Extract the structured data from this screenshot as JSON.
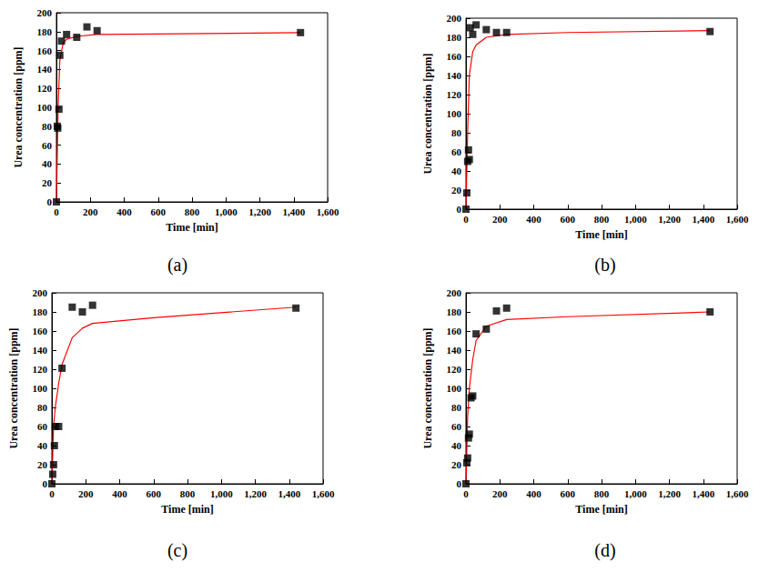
{
  "chart_data": [
    {
      "type": "scatter",
      "title": "(a)",
      "x_label": "Time [min]",
      "y_label": "Urea concentration [ppm]",
      "xlim": [
        0,
        1600
      ],
      "xticks": [
        0,
        200,
        400,
        600,
        800,
        1000,
        1200,
        1400,
        1600
      ],
      "ylim": [
        0,
        200
      ],
      "yticks": [
        0,
        20,
        40,
        60,
        80,
        100,
        120,
        140,
        160,
        180,
        200
      ],
      "grid": false,
      "series": [
        {
          "type": "scatter",
          "color": "#000000",
          "marker": "square",
          "x": [
            0,
            5,
            8,
            15,
            20,
            30,
            60,
            120,
            180,
            240,
            1440
          ],
          "values": [
            0,
            80,
            78,
            98,
            155,
            170,
            177,
            174,
            185,
            181,
            179
          ]
        },
        {
          "type": "line",
          "color": "#ff0000",
          "line_style": "solid",
          "x": [
            0,
            10,
            20,
            40,
            60,
            120,
            240,
            600,
            1440
          ],
          "values": [
            0,
            100,
            150,
            168,
            172,
            175,
            177,
            177.5,
            179
          ]
        }
      ]
    },
    {
      "type": "scatter",
      "title": "(b)",
      "x_label": "Time [min]",
      "y_label": "Urea concentration [ppm]",
      "xlim": [
        0,
        1600
      ],
      "xticks": [
        0,
        200,
        400,
        600,
        800,
        1000,
        1200,
        1400,
        1600
      ],
      "ylim": [
        0,
        200
      ],
      "yticks": [
        0,
        20,
        40,
        60,
        80,
        100,
        120,
        140,
        160,
        180,
        200
      ],
      "grid": false,
      "series": [
        {
          "type": "scatter",
          "color": "#000000",
          "marker": "square",
          "x": [
            0,
            5,
            10,
            15,
            20,
            25,
            40,
            60,
            120,
            180,
            240,
            1440
          ],
          "values": [
            0,
            17,
            50,
            62,
            52,
            190,
            183,
            193,
            188,
            185,
            185,
            186
          ]
        },
        {
          "type": "line",
          "color": "#ff0000",
          "line_style": "solid",
          "x": [
            0,
            10,
            20,
            40,
            60,
            120,
            240,
            600,
            1440
          ],
          "values": [
            0,
            80,
            140,
            165,
            172,
            180,
            183,
            185,
            187
          ]
        }
      ]
    },
    {
      "type": "scatter",
      "title": "(c)",
      "x_label": "Time [min]",
      "y_label": "Urea concentration [ppm]",
      "xlim": [
        0,
        1600
      ],
      "xticks": [
        0,
        200,
        400,
        600,
        800,
        1000,
        1200,
        1400,
        1600
      ],
      "ylim": [
        0,
        200
      ],
      "yticks": [
        0,
        20,
        40,
        60,
        80,
        100,
        120,
        140,
        160,
        180,
        200
      ],
      "grid": false,
      "series": [
        {
          "type": "scatter",
          "color": "#000000",
          "marker": "square",
          "x": [
            0,
            5,
            10,
            15,
            20,
            40,
            60,
            120,
            180,
            240,
            1440
          ],
          "values": [
            0,
            10,
            20,
            40,
            60,
            60,
            121,
            185,
            180,
            187,
            184
          ]
        },
        {
          "type": "line",
          "color": "#ff0000",
          "line_style": "solid",
          "x": [
            0,
            10,
            20,
            40,
            60,
            120,
            180,
            240,
            600,
            1440
          ],
          "values": [
            0,
            60,
            80,
            105,
            125,
            153,
            163,
            168,
            174,
            185
          ]
        }
      ]
    },
    {
      "type": "scatter",
      "title": "(d)",
      "x_label": "Time [min]",
      "y_label": "Urea concentration [ppm]",
      "xlim": [
        0,
        1600
      ],
      "xticks": [
        0,
        200,
        400,
        600,
        800,
        1000,
        1200,
        1400,
        1600
      ],
      "ylim": [
        0,
        200
      ],
      "yticks": [
        0,
        20,
        40,
        60,
        80,
        100,
        120,
        140,
        160,
        180,
        200
      ],
      "grid": false,
      "series": [
        {
          "type": "scatter",
          "color": "#000000",
          "marker": "square",
          "x": [
            0,
            5,
            10,
            15,
            20,
            30,
            40,
            60,
            120,
            180,
            240,
            1440
          ],
          "values": [
            0,
            22,
            27,
            48,
            52,
            90,
            92,
            157,
            162,
            181,
            184,
            180
          ]
        },
        {
          "type": "line",
          "color": "#ff0000",
          "line_style": "solid",
          "x": [
            0,
            10,
            20,
            40,
            60,
            120,
            240,
            600,
            1440
          ],
          "values": [
            0,
            70,
            100,
            130,
            150,
            165,
            172,
            175,
            180
          ]
        }
      ]
    }
  ]
}
